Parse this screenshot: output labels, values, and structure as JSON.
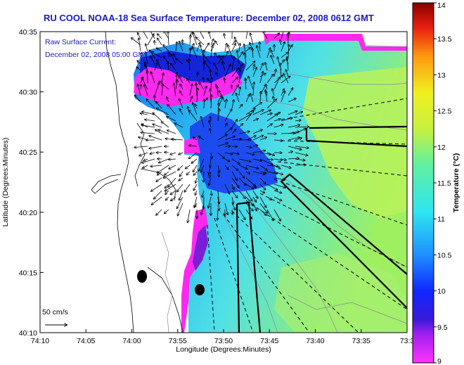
{
  "chart_data": {
    "type": "heatmap",
    "title": "RU COOL  NOAA-18  Sea Surface Temperature:  December 02, 2008 0612 GMT",
    "overlay_label_1": "Raw Surface Current:",
    "overlay_label_2": "December 02, 2008 05:00 GMT",
    "xlabel": "Longitude (Degrees:Minutes)",
    "ylabel": "Latitude (Degrees:Minutes)",
    "x_ticks": [
      "74:10",
      "74:05",
      "74:00",
      "73:55",
      "73:50",
      "73:45",
      "73:40",
      "73:35",
      "73:3"
    ],
    "y_ticks": [
      "40:35",
      "40:30",
      "40:25",
      "40:20",
      "40:15",
      "40:10"
    ],
    "x_range_deg": [
      -74.1667,
      -73.5
    ],
    "y_range_deg": [
      40.1667,
      40.5833
    ],
    "scale_label": "50 cm/s",
    "colorbar": {
      "label": "Temperature (°C)",
      "min": 9,
      "max": 14,
      "ticks": [
        "14",
        "13.5",
        "13",
        "12.5",
        "12",
        "11.5",
        "11",
        "10.5",
        "10",
        "9.5",
        "9"
      ]
    },
    "colors": {
      "sst_warm": "#b9f256",
      "sst_mid": "#4fe0e8",
      "sst_cool": "#2a8cf0",
      "sst_cold": "#1a1ad8",
      "sst_coldest": "#ff1ee8",
      "land": "#ffffff",
      "vector": "#000000"
    }
  }
}
